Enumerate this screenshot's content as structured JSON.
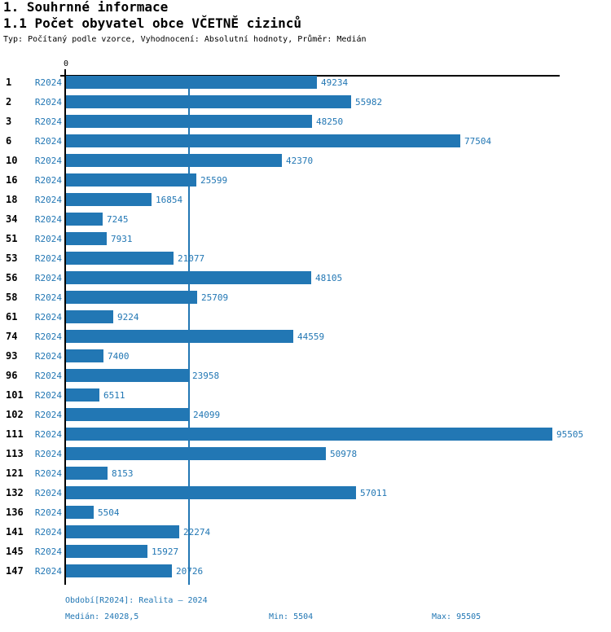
{
  "header": {
    "title": "1. Souhrnné informace",
    "subtitle": "1.1 Počet obyvatel obce VČETNĚ cizinců",
    "meta": "Typ: Počítaný podle vzorce, Vyhodnocení: Absolutní hodnoty, Průměr: Medián"
  },
  "chart_data": {
    "type": "bar",
    "orientation": "horizontal",
    "title": "1.1 Počet obyvatel obce VČETNĚ cizinců",
    "series_label": "R2024",
    "categories": [
      "1",
      "2",
      "3",
      "6",
      "10",
      "16",
      "18",
      "34",
      "51",
      "53",
      "56",
      "58",
      "61",
      "74",
      "93",
      "96",
      "101",
      "102",
      "111",
      "113",
      "121",
      "132",
      "136",
      "141",
      "145",
      "147"
    ],
    "values": [
      49234,
      55982,
      48250,
      77504,
      42370,
      25599,
      16854,
      7245,
      7931,
      21077,
      48105,
      25709,
      9224,
      44559,
      7400,
      23958,
      6511,
      24099,
      95505,
      50978,
      8153,
      57011,
      5504,
      22274,
      15927,
      20726
    ],
    "axis_zero_label": "0",
    "xlim": [
      0,
      96500
    ],
    "median_value": 24028.5,
    "grid": false,
    "legend": false,
    "bar_color": "#2277b4",
    "median_line_color": "#2277b4",
    "value_label_color": "#2277b4"
  },
  "footer": {
    "period": "Období[R2024]: Realita – 2024",
    "median": "Medián: 24028,5",
    "min": "Min: 5504",
    "max": "Max: 95505"
  }
}
